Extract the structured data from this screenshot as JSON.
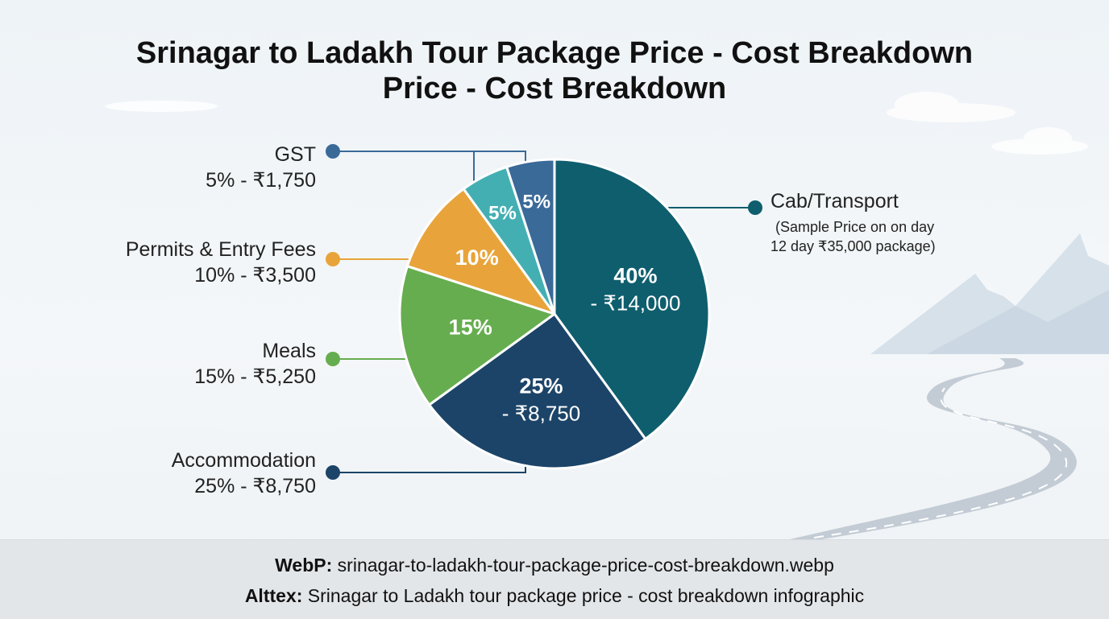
{
  "title_line1": "Srinagar to Ladakh Tour Package Price - Cost Breakdown",
  "title_line2": "Price - Cost Breakdown",
  "chart_data": {
    "type": "pie",
    "slices": [
      {
        "label": "Cab/Transport",
        "percent": 40,
        "amount": "₹14,000",
        "color": "#0f5e6e",
        "inner_pct": "40%",
        "inner_amt": "- ₹14,000",
        "side_text": "",
        "side_line": "Cab/Transport"
      },
      {
        "label": "Accommodation",
        "percent": 25,
        "amount": "₹8,750",
        "color": "#1c4468",
        "inner_pct": "25%",
        "inner_amt": "- ₹8,750",
        "side_text": "25% - ₹8,750"
      },
      {
        "label": "Meals",
        "percent": 15,
        "amount": "₹5,250",
        "color": "#66ad4f",
        "inner_pct": "15%",
        "inner_amt": "",
        "side_text": "15% - ₹5,250"
      },
      {
        "label": "Permits & Entry Fees",
        "percent": 10,
        "amount": "₹3,500",
        "color": "#e8a43a",
        "inner_pct": "10%",
        "inner_amt": "",
        "side_text": "10% - ₹3,500"
      },
      {
        "label": "",
        "percent": 5,
        "amount": "",
        "color": "#44afb3",
        "inner_pct": "5%",
        "inner_amt": "",
        "side_text": ""
      },
      {
        "label": "GST",
        "percent": 5,
        "amount": "₹1,750",
        "color": "#3a6a98",
        "inner_pct": "5%",
        "inner_amt": "",
        "side_text": "5% - ₹1,750"
      }
    ],
    "annotation_line1": "(Sample Price on on day",
    "annotation_line2": "12 day ₹35,000 package)"
  },
  "footer": {
    "webp_label": "WebP:",
    "webp_value": "srinagar-to-ladakh-tour-package-price-cost-breakdown.webp",
    "alt_label": "Alttex:",
    "alt_value": "Srinagar to Ladakh tour package price - cost breakdown infographic"
  }
}
